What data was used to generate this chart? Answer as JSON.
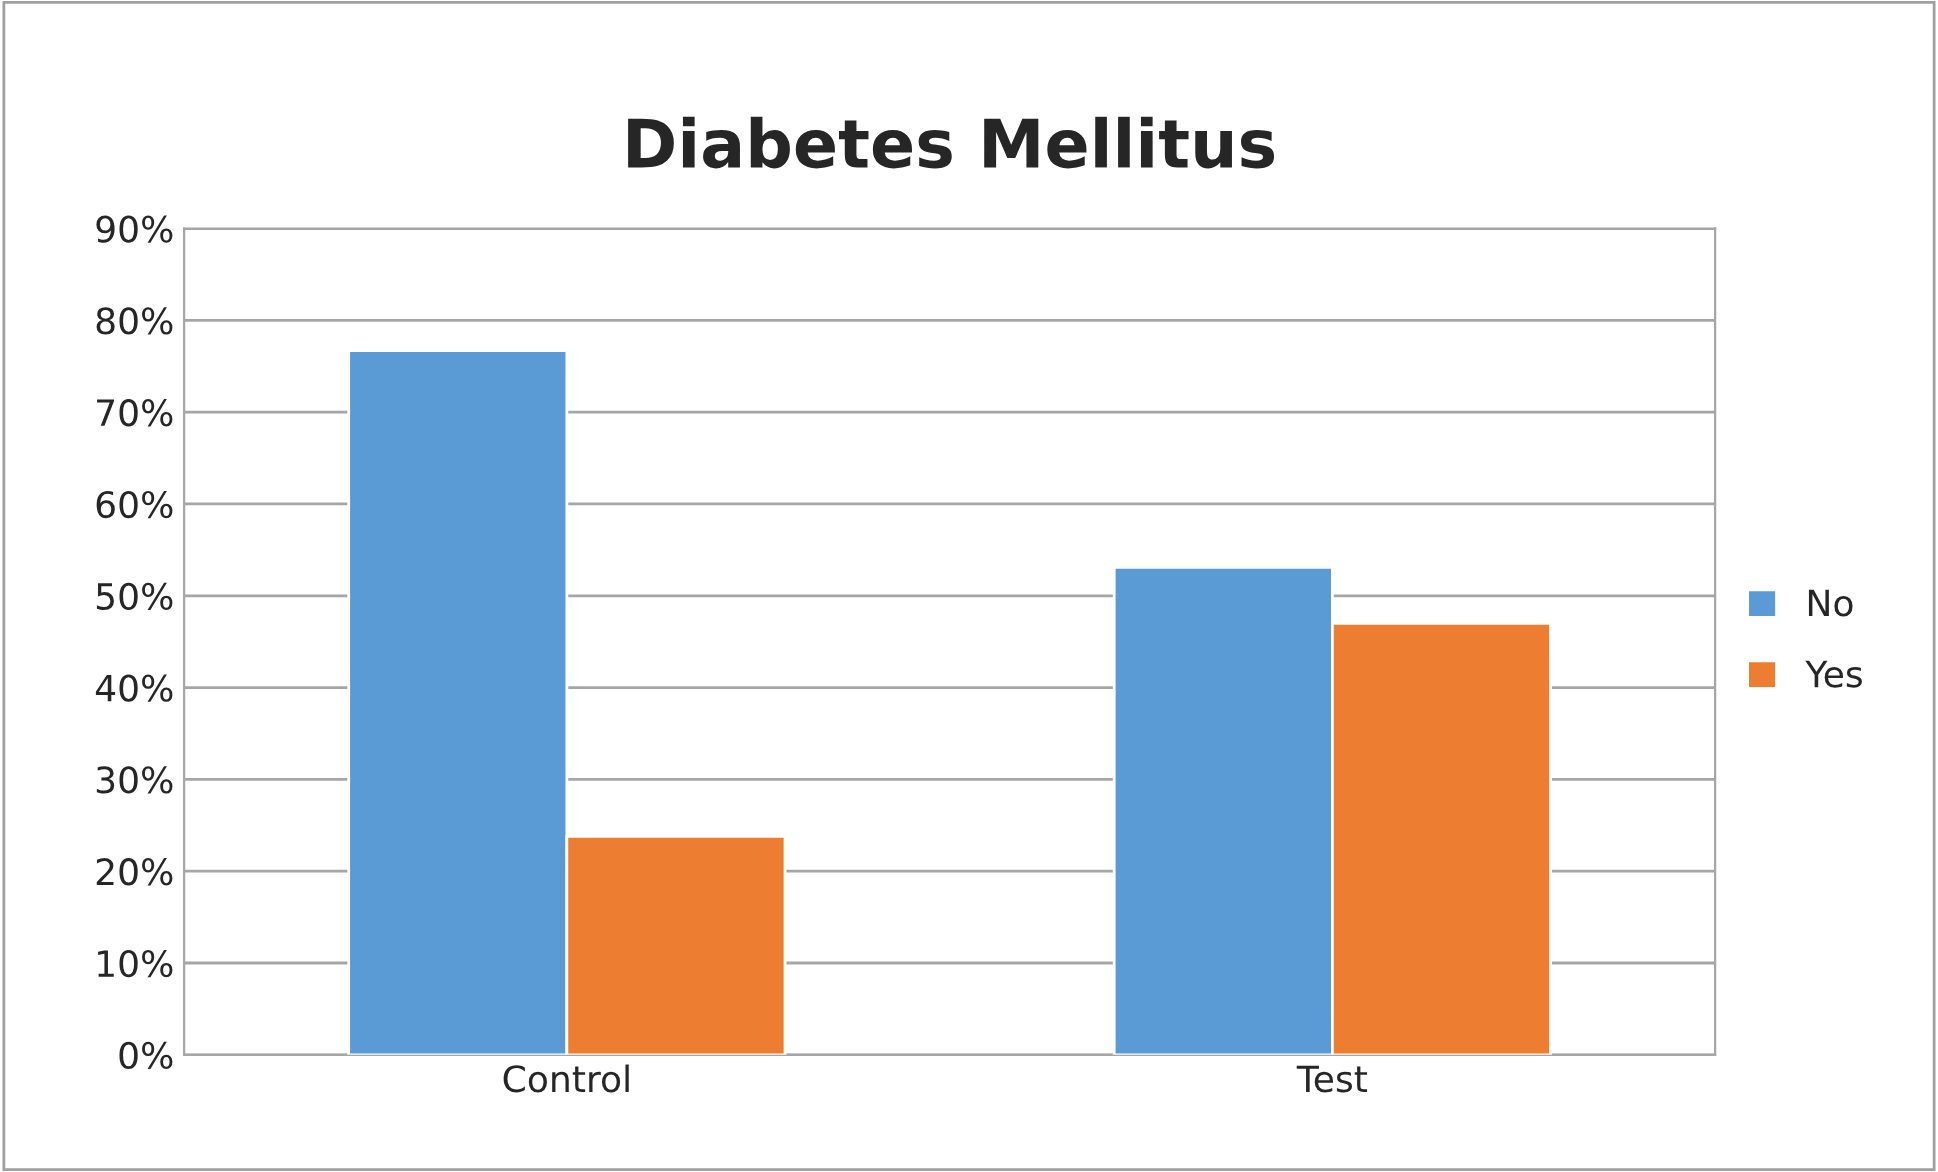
{
  "chart_data": {
    "type": "bar",
    "title": "Diabetes Mellitus",
    "categories": [
      "Control",
      "Test"
    ],
    "series": [
      {
        "name": "No",
        "color": "#5b9bd5",
        "values": [
          76.7,
          53.1
        ]
      },
      {
        "name": "Yes",
        "color": "#ed7d31",
        "values": [
          23.8,
          47.0
        ]
      }
    ],
    "ylim": [
      0,
      90
    ],
    "yticks": [
      {
        "value": 0,
        "label": "0%"
      },
      {
        "value": 10,
        "label": "10%"
      },
      {
        "value": 20,
        "label": "20%"
      },
      {
        "value": 30,
        "label": "30%"
      },
      {
        "value": 40,
        "label": "40%"
      },
      {
        "value": 50,
        "label": "50%"
      },
      {
        "value": 60,
        "label": "60%"
      },
      {
        "value": 70,
        "label": "70%"
      },
      {
        "value": 80,
        "label": "80%"
      },
      {
        "value": 90,
        "label": "90%"
      }
    ],
    "grid": "y",
    "legend": "right"
  }
}
